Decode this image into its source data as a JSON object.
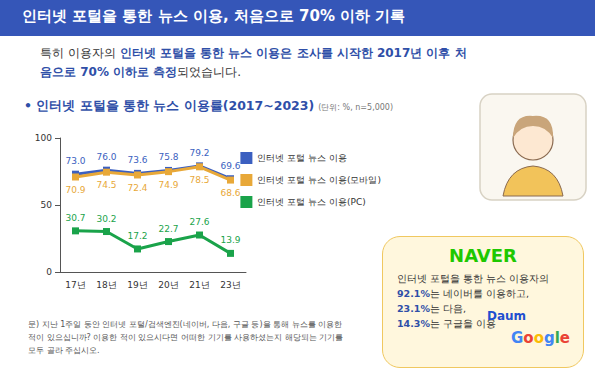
{
  "header": {
    "title": "인터넷 포털을 통한 뉴스 이용, 처음으로 70% 이하 기록"
  },
  "intro": {
    "before": "특히 이용자의 ",
    "emphasis": "인터넷 포털을 통한 뉴스 이용은 조사를 시작한 2017년 이후 처음으로 70% 이하로 측정",
    "after": "되었습니다."
  },
  "chart_data": {
    "type": "line",
    "title": "• 인터넷 포털을 통한 뉴스 이용률(2017~2023)",
    "subtitle": "(단위: %, n=5,000)",
    "categories": [
      "17년",
      "18년",
      "19년",
      "20년",
      "21년",
      "23년"
    ],
    "series": [
      {
        "name": "인터넷 포털 뉴스 이용",
        "color": "#3b5fc0",
        "values": [
          73.0,
          76.0,
          73.6,
          75.8,
          79.2,
          69.6
        ],
        "value_labels": [
          "73.0",
          "76.0",
          "73.6",
          "75.8",
          "79.2",
          "69.6"
        ]
      },
      {
        "name": "인터넷 포털 뉴스 이용(모바일)",
        "color": "#e8a838",
        "values": [
          70.9,
          74.5,
          72.4,
          74.9,
          78.5,
          68.6
        ],
        "value_labels": [
          "70.9",
          "74.5",
          "72.4",
          "74.9",
          "78.5",
          "68.6"
        ]
      },
      {
        "name": "인터넷 포털 뉴스 이용(PC)",
        "color": "#1aa34a",
        "values": [
          30.7,
          30.2,
          17.2,
          22.7,
          27.6,
          13.9
        ],
        "value_labels": [
          "30.7",
          "30.2",
          "17.2",
          "22.7",
          "27.6",
          "13.9"
        ]
      }
    ],
    "ylim": [
      0,
      100
    ],
    "yticks": [
      0,
      50,
      100
    ],
    "grid": false,
    "legend": "right",
    "data_labels": true,
    "marker": "square"
  },
  "footnote": "문) 지난 1주일 동안 인터넷 포털/검색엔진(네이버, 다음, 구글 등)을 통해 뉴스를 이용한 적이 있으십니까? 이용한 적이 있으시다면 어떠한 기기를 사용하셨는지 해당되는 기기를 모두 골라 주십시오.",
  "callout": {
    "brand": "NAVER",
    "lead": "인터넷 포털을 통한 뉴스 이용자의",
    "items": [
      {
        "share": "92.1%",
        "text": "는 네이버를 이용하고,"
      },
      {
        "share": "23.1%",
        "text": "는 다음,"
      },
      {
        "share": "14.3%",
        "text": "는 구글을 이용"
      }
    ],
    "logos": [
      "Daum",
      "Google"
    ]
  }
}
